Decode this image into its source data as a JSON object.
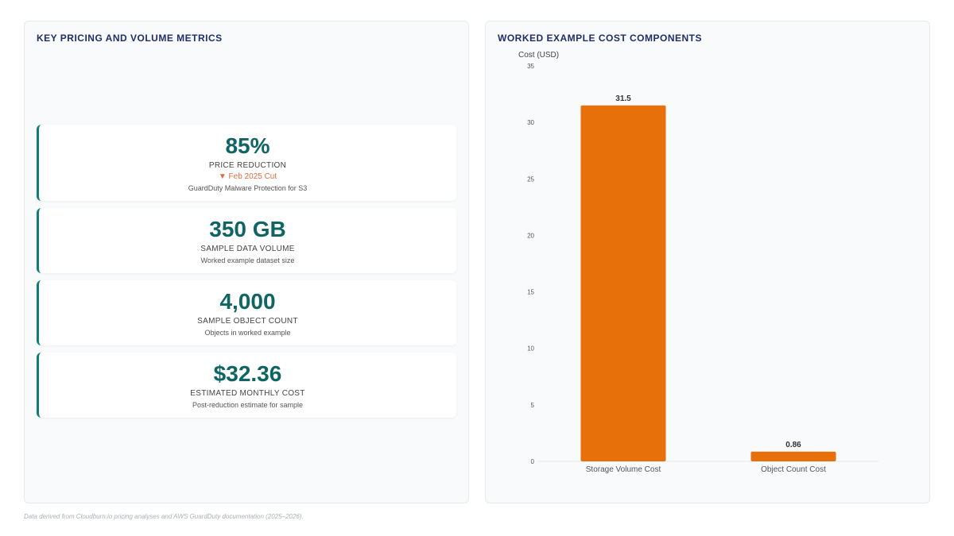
{
  "left_panel": {
    "title": "KEY PRICING AND VOLUME METRICS",
    "kpis": [
      {
        "value": "85%",
        "label": "PRICE REDUCTION",
        "badge": "▼ Feb 2025 Cut",
        "sub": "GuardDuty Malware Protection for S3"
      },
      {
        "value": "350 GB",
        "label": "SAMPLE DATA VOLUME",
        "sub": "Worked example dataset size"
      },
      {
        "value": "4,000",
        "label": "SAMPLE OBJECT COUNT",
        "sub": "Objects in worked example"
      },
      {
        "value": "$32.36",
        "label": "ESTIMATED MONTHLY COST",
        "sub": "Post-reduction estimate for sample"
      }
    ]
  },
  "right_panel": {
    "title": "WORKED EXAMPLE COST COMPONENTS"
  },
  "chart_data": {
    "type": "bar",
    "categories": [
      "Storage Volume Cost",
      "Object Count Cost"
    ],
    "values": [
      31.5,
      0.86
    ],
    "value_labels": [
      "31.5",
      "0.86"
    ],
    "ylabel": "Cost (USD)",
    "xlabel": "",
    "ylim": [
      0,
      35
    ],
    "yticks": [
      0,
      5,
      10,
      15,
      20,
      25,
      30,
      35
    ],
    "bar_color": "#e8700a",
    "grid": false
  },
  "footnote": "Data derived from Cloudburn.io pricing analyses and AWS GuardDuty documentation (2025–2026)."
}
